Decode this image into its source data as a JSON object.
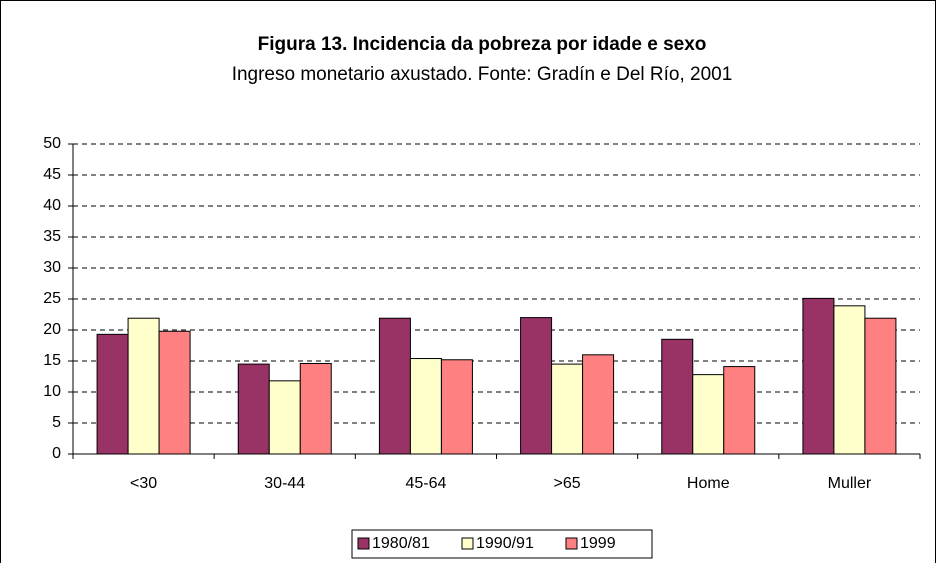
{
  "chart_data": {
    "type": "bar",
    "title": "Figura 13. Incidencia da pobreza por idade e sexo",
    "subtitle": "Ingreso monetario axustado. Fonte: Gradín e Del Río, 2001",
    "categories": [
      "<30",
      "30-44",
      "45-64",
      ">65",
      "Home",
      "Muller"
    ],
    "series": [
      {
        "name": "1980/81",
        "color": "#993366",
        "values": [
          19.3,
          14.5,
          21.9,
          22.0,
          18.5,
          25.1
        ]
      },
      {
        "name": "1990/91",
        "color": "#ffffcc",
        "values": [
          21.9,
          11.8,
          15.4,
          14.5,
          12.8,
          23.9
        ]
      },
      {
        "name": "1999",
        "color": "#ff8080",
        "values": [
          19.8,
          14.6,
          15.2,
          16.0,
          14.1,
          21.9
        ]
      }
    ],
    "ylim": [
      0,
      50
    ],
    "yticks": [
      0,
      5,
      10,
      15,
      20,
      25,
      30,
      35,
      40,
      45,
      50
    ],
    "grid": true
  }
}
